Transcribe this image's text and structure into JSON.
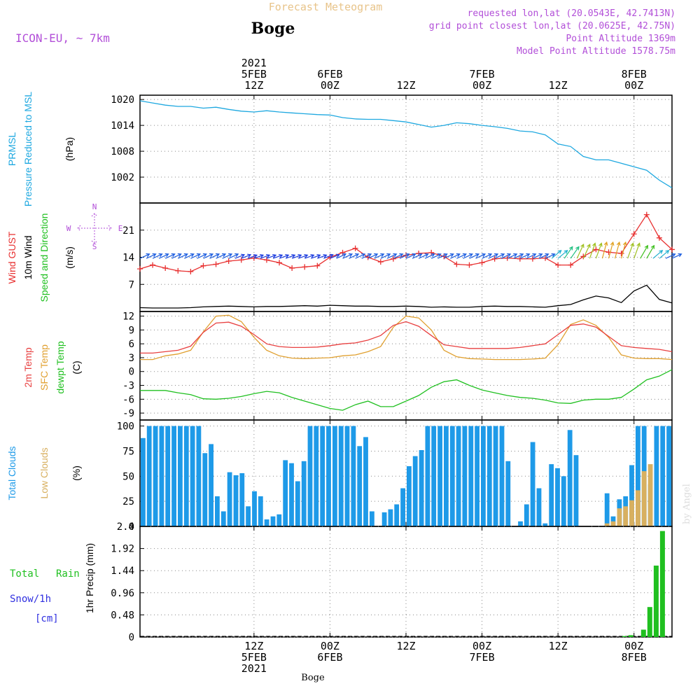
{
  "header": {
    "title_top": "Forecast Meteogram",
    "location": "Boge",
    "model": "ICON-EU, ~ 7km",
    "requested": "requested lon,lat (20.0543E, 42.7413N)",
    "grid": "grid point closest lon,lat (20.0625E, 42.75N)",
    "point_alt": "Point Altitude 1369m",
    "model_alt": "Model Point Altitude 1578.75m",
    "footer": "Boge",
    "watermark": "by Angel"
  },
  "time_axis": {
    "top_labels": [
      {
        "t": 18,
        "lines": [
          "2021",
          "5FEB",
          "12Z"
        ]
      },
      {
        "t": 30,
        "lines": [
          "6FEB",
          "00Z"
        ]
      },
      {
        "t": 42,
        "lines": [
          "12Z"
        ]
      },
      {
        "t": 54,
        "lines": [
          "7FEB",
          "00Z"
        ]
      },
      {
        "t": 66,
        "lines": [
          "12Z"
        ]
      },
      {
        "t": 78,
        "lines": [
          "8FEB",
          "00Z"
        ]
      }
    ],
    "bottom_labels": [
      {
        "t": 18,
        "lines": [
          "12Z",
          "5FEB",
          "2021"
        ]
      },
      {
        "t": 30,
        "lines": [
          "00Z",
          "6FEB"
        ]
      },
      {
        "t": 42,
        "lines": [
          "12Z"
        ]
      },
      {
        "t": 54,
        "lines": [
          "00Z",
          "7FEB"
        ]
      },
      {
        "t": 66,
        "lines": [
          "12Z"
        ]
      },
      {
        "t": 78,
        "lines": [
          "00Z",
          "8FEB"
        ]
      }
    ]
  },
  "colors": {
    "pressure": "#1ea8e0",
    "gust": "#e83030",
    "wind": "#000000",
    "t2m": "#e84040",
    "tsfc": "#e0a030",
    "dew": "#20c020",
    "total_clouds": "#1e9ae8",
    "low_clouds": "#d8b060",
    "rain": "#20c020",
    "snow": "#3030e0",
    "label_purple": "#b24fd8"
  },
  "panel_labels": {
    "pressure": [
      "PRMSL",
      "Pressure Reduced to MSL",
      "(hPa)"
    ],
    "wind": [
      "Wind GUST",
      "10m Wind",
      "Speed and Direction",
      "(m/s)"
    ],
    "compass": [
      "N",
      "W",
      "S",
      "E"
    ],
    "temp": [
      "2m Temp",
      "SFC Temp",
      "dewpt Temp",
      "(C)"
    ],
    "clouds": [
      "Total Clouds",
      "Low Clouds",
      "(%)"
    ],
    "precip": [
      "1hr Precip (mm)",
      "Total",
      "Rain",
      "Snow/1h",
      "[cm]"
    ]
  },
  "chart_data": [
    {
      "type": "line",
      "name": "pressure",
      "ylabel": "PRMSL Pressure Reduced to MSL (hPa)",
      "ylim": [
        996,
        1021
      ],
      "yticks": [
        1002,
        1008,
        1014,
        1020
      ],
      "x": [
        0,
        2,
        4,
        6,
        8,
        10,
        12,
        14,
        16,
        18,
        20,
        22,
        24,
        26,
        28,
        30,
        32,
        34,
        36,
        38,
        40,
        42,
        44,
        46,
        48,
        50,
        52,
        54,
        56,
        58,
        60,
        62,
        64,
        66,
        68,
        70,
        72,
        74,
        76,
        78,
        80,
        82,
        84
      ],
      "values": [
        1019.7,
        1019.2,
        1018.7,
        1018.4,
        1018.4,
        1018.0,
        1018.2,
        1017.7,
        1017.3,
        1017.1,
        1017.4,
        1017.1,
        1016.9,
        1016.7,
        1016.5,
        1016.4,
        1015.8,
        1015.5,
        1015.4,
        1015.4,
        1015.1,
        1014.8,
        1014.2,
        1013.6,
        1014.0,
        1014.6,
        1014.4,
        1014.0,
        1013.7,
        1013.3,
        1012.7,
        1012.5,
        1011.8,
        1009.7,
        1009.1,
        1006.8,
        1006.0,
        1006.0,
        1005.2,
        1004.4,
        1003.6,
        1001.3,
        999.5
      ]
    },
    {
      "type": "line",
      "name": "wind",
      "ylabel": "Wind GUST / 10m Wind Speed and Direction (m/s)",
      "ylim": [
        0,
        28
      ],
      "yticks": [
        7,
        14,
        21
      ],
      "x": [
        0,
        2,
        4,
        6,
        8,
        10,
        12,
        14,
        16,
        18,
        20,
        22,
        24,
        26,
        28,
        30,
        32,
        34,
        36,
        38,
        40,
        42,
        44,
        46,
        48,
        50,
        52,
        54,
        56,
        58,
        60,
        62,
        64,
        66,
        68,
        70,
        72,
        74,
        76,
        78,
        80,
        82,
        84
      ],
      "gust": [
        11.0,
        12.0,
        11.2,
        10.5,
        10.3,
        11.8,
        12.2,
        13.0,
        13.3,
        13.8,
        13.3,
        12.6,
        11.2,
        11.5,
        11.8,
        14.0,
        15.2,
        16.3,
        14.0,
        12.8,
        13.6,
        14.5,
        15.0,
        15.2,
        14.2,
        12.2,
        12.0,
        12.6,
        13.6,
        13.8,
        13.6,
        13.6,
        13.8,
        12.0,
        12.0,
        14.2,
        16.0,
        15.3,
        15.0,
        20.0,
        25.0,
        19.0,
        16.0
      ],
      "speed": [
        1.0,
        0.9,
        0.9,
        0.9,
        1.0,
        1.2,
        1.3,
        1.4,
        1.3,
        1.2,
        1.3,
        1.3,
        1.4,
        1.5,
        1.4,
        1.6,
        1.5,
        1.4,
        1.4,
        1.3,
        1.3,
        1.4,
        1.3,
        1.1,
        1.2,
        1.1,
        1.1,
        1.3,
        1.4,
        1.3,
        1.3,
        1.2,
        1.1,
        1.5,
        1.8,
        3.0,
        4.0,
        3.5,
        2.3,
        5.3,
        6.8,
        3.1,
        2.2
      ],
      "dir_deg": [
        245,
        245,
        245,
        245,
        245,
        245,
        245,
        245,
        248,
        250,
        250,
        250,
        250,
        250,
        250,
        248,
        245,
        245,
        245,
        245,
        245,
        245,
        245,
        245,
        245,
        245,
        245,
        245,
        245,
        245,
        245,
        245,
        245,
        230,
        215,
        205,
        200,
        195,
        195,
        200,
        210,
        230,
        245
      ]
    },
    {
      "type": "line",
      "name": "temperature",
      "ylabel": "2m Temp / SFC Temp / dewpt Temp (C)",
      "ylim": [
        -10.5,
        13
      ],
      "yticks": [
        -9,
        -6,
        -3,
        0,
        3,
        6,
        9,
        12
      ],
      "x": [
        0,
        2,
        4,
        6,
        8,
        10,
        12,
        14,
        16,
        18,
        20,
        22,
        24,
        26,
        28,
        30,
        32,
        34,
        36,
        38,
        40,
        42,
        44,
        46,
        48,
        50,
        52,
        54,
        56,
        58,
        60,
        62,
        64,
        66,
        68,
        70,
        72,
        74,
        76,
        78,
        80,
        82,
        84
      ],
      "t2m": [
        4.0,
        4.0,
        4.3,
        4.6,
        5.5,
        8.5,
        10.5,
        10.7,
        9.8,
        8.0,
        6.0,
        5.4,
        5.2,
        5.2,
        5.3,
        5.6,
        6.0,
        6.2,
        6.8,
        7.8,
        10.0,
        10.8,
        9.8,
        7.8,
        5.8,
        5.4,
        5.0,
        5.0,
        5.0,
        5.0,
        5.2,
        5.6,
        6.0,
        8.0,
        10.0,
        10.3,
        9.6,
        7.6,
        5.6,
        5.2,
        5.0,
        4.8,
        4.3
      ],
      "tsfc": [
        2.6,
        2.6,
        3.4,
        3.8,
        4.6,
        8.6,
        12.0,
        12.2,
        10.8,
        7.4,
        4.6,
        3.4,
        2.9,
        2.8,
        2.9,
        3.0,
        3.4,
        3.6,
        4.3,
        5.4,
        9.6,
        12.0,
        11.6,
        9.0,
        4.6,
        3.2,
        2.8,
        2.7,
        2.6,
        2.6,
        2.6,
        2.7,
        2.9,
        5.8,
        10.2,
        11.2,
        10.0,
        7.4,
        3.6,
        2.9,
        2.8,
        2.8,
        2.6
      ],
      "dewpt": [
        -4.1,
        -4.1,
        -4.1,
        -4.6,
        -5.0,
        -5.9,
        -6.0,
        -5.8,
        -5.4,
        -4.8,
        -4.3,
        -4.6,
        -5.6,
        -6.4,
        -7.2,
        -8.0,
        -8.4,
        -7.2,
        -6.4,
        -7.6,
        -7.6,
        -6.4,
        -5.2,
        -3.4,
        -2.2,
        -1.8,
        -3.0,
        -4.0,
        -4.6,
        -5.2,
        -5.6,
        -5.8,
        -6.2,
        -6.8,
        -6.9,
        -6.2,
        -6.0,
        -6.0,
        -5.6,
        -3.8,
        -1.8,
        -1.0,
        0.4
      ]
    },
    {
      "type": "bar",
      "name": "clouds",
      "ylabel": "Total Clouds / Low Clouds (%)",
      "ylim": [
        0,
        106
      ],
      "yticks": [
        0,
        25,
        50,
        75,
        100
      ],
      "total": [
        88,
        100,
        100,
        100,
        100,
        100,
        100,
        100,
        100,
        100,
        73,
        82,
        30,
        15,
        54,
        51,
        53,
        20,
        35,
        30,
        7,
        10,
        12,
        66,
        63,
        45,
        65,
        100,
        100,
        100,
        100,
        100,
        100,
        100,
        100,
        80,
        89,
        15,
        0,
        14,
        17,
        22,
        38,
        60,
        70,
        76,
        100,
        100,
        100,
        100,
        100,
        100,
        100,
        100,
        100,
        100,
        100,
        100,
        100,
        65,
        0,
        5,
        22,
        84,
        38,
        3,
        62,
        58,
        50,
        96,
        71,
        0,
        0,
        0,
        0,
        33,
        10,
        27,
        30,
        61,
        100,
        100,
        42,
        100,
        100,
        100
      ],
      "low": [
        0,
        0,
        0,
        0,
        0,
        0,
        0,
        0,
        0,
        0,
        0,
        0,
        0,
        0,
        0,
        0,
        0,
        0,
        0,
        0,
        0,
        0,
        0,
        0,
        0,
        0,
        0,
        0,
        0,
        0,
        0,
        0,
        0,
        0,
        0,
        0,
        0,
        0,
        0,
        0,
        0,
        0,
        0,
        0,
        0,
        0,
        0,
        0,
        0,
        0,
        0,
        0,
        0,
        0,
        0,
        0,
        0,
        0,
        0,
        0,
        0,
        0,
        0,
        0,
        0,
        0,
        0,
        0,
        0,
        0,
        0,
        0,
        0,
        0,
        0,
        3,
        5,
        18,
        20,
        26,
        36,
        55,
        62,
        0,
        0,
        0
      ]
    },
    {
      "type": "bar",
      "name": "precipitation",
      "ylabel": "1hr Precip (mm)",
      "ylim": [
        0,
        2.4
      ],
      "yticks": [
        0,
        0.48,
        0.96,
        1.44,
        1.92,
        2.4
      ],
      "x": [
        76,
        77,
        78,
        79,
        80,
        81,
        82
      ],
      "rain": [
        0.02,
        0.04,
        0.0,
        0.16,
        0.65,
        1.55,
        2.3
      ]
    }
  ]
}
